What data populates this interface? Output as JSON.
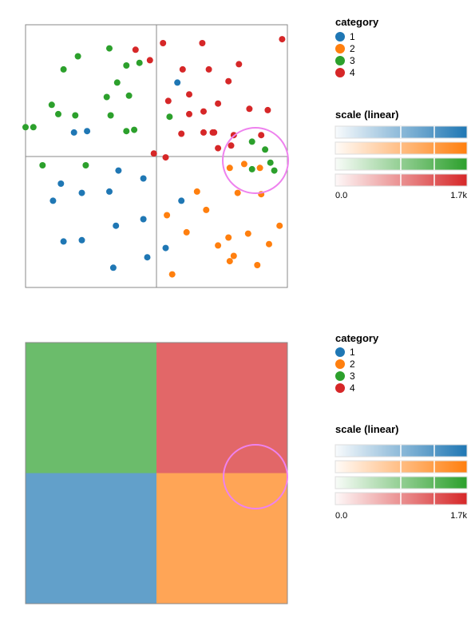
{
  "colors": {
    "1": "#1f77b4",
    "2": "#ff7f0e",
    "3": "#2ca02c",
    "4": "#d62728",
    "lens": "#ee82ee",
    "frame": "#888888"
  },
  "legend": {
    "category_title": "category",
    "categories": [
      "1",
      "2",
      "3",
      "4"
    ],
    "scale_title": "scale (linear)",
    "scale_min_label": "0.0",
    "scale_max_label": "1.7k"
  },
  "chart_data": [
    {
      "type": "scatter",
      "title": "",
      "xlabel": "",
      "ylabel": "",
      "xlim": [
        -1,
        1
      ],
      "ylim": [
        -1,
        1
      ],
      "grid": false,
      "legend_position": "right",
      "series": [
        {
          "name": "1",
          "points": [
            [
              -0.53,
              0.19
            ],
            [
              -0.29,
              -0.11
            ],
            [
              -0.73,
              -0.21
            ],
            [
              -0.79,
              -0.34
            ],
            [
              -0.57,
              -0.28
            ],
            [
              -0.36,
              -0.27
            ],
            [
              -0.1,
              -0.17
            ],
            [
              -0.31,
              -0.53
            ],
            [
              -0.1,
              -0.48
            ],
            [
              -0.71,
              -0.65
            ],
            [
              -0.57,
              -0.64
            ],
            [
              -0.07,
              -0.77
            ],
            [
              -0.33,
              -0.85
            ],
            [
              0.07,
              -0.7
            ],
            [
              0.19,
              -0.34
            ],
            [
              0.16,
              0.56
            ],
            [
              -0.63,
              0.18
            ]
          ]
        },
        {
          "name": "2",
          "points": [
            [
              0.56,
              -0.09
            ],
            [
              0.67,
              -0.06
            ],
            [
              0.79,
              -0.09
            ],
            [
              0.62,
              -0.28
            ],
            [
              0.8,
              -0.29
            ],
            [
              0.31,
              -0.27
            ],
            [
              0.38,
              -0.41
            ],
            [
              0.08,
              -0.45
            ],
            [
              0.23,
              -0.58
            ],
            [
              0.55,
              -0.62
            ],
            [
              0.7,
              -0.59
            ],
            [
              0.86,
              -0.67
            ],
            [
              0.47,
              -0.68
            ],
            [
              0.94,
              -0.53
            ],
            [
              0.59,
              -0.76
            ],
            [
              0.56,
              -0.8
            ],
            [
              0.77,
              -0.83
            ],
            [
              0.12,
              -0.9
            ]
          ]
        },
        {
          "name": "3",
          "points": [
            [
              -0.36,
              0.82
            ],
            [
              -0.6,
              0.76
            ],
            [
              -0.71,
              0.66
            ],
            [
              -0.23,
              0.69
            ],
            [
              -0.3,
              0.56
            ],
            [
              -0.13,
              0.71
            ],
            [
              -0.21,
              0.46
            ],
            [
              -0.38,
              0.45
            ],
            [
              -0.8,
              0.39
            ],
            [
              -0.62,
              0.31
            ],
            [
              -0.75,
              0.32
            ],
            [
              -0.94,
              0.22
            ],
            [
              -1.0,
              0.22
            ],
            [
              -0.35,
              0.31
            ],
            [
              -0.17,
              0.2
            ],
            [
              -0.23,
              0.19
            ],
            [
              0.1,
              0.3
            ],
            [
              -0.87,
              -0.07
            ],
            [
              -0.54,
              -0.07
            ],
            [
              0.73,
              0.11
            ],
            [
              0.83,
              0.05
            ],
            [
              0.87,
              -0.05
            ],
            [
              0.9,
              -0.11
            ],
            [
              0.73,
              -0.1
            ]
          ]
        },
        {
          "name": "4",
          "points": [
            [
              0.05,
              0.86
            ],
            [
              0.35,
              0.86
            ],
            [
              0.96,
              0.89
            ],
            [
              -0.16,
              0.81
            ],
            [
              -0.05,
              0.73
            ],
            [
              0.2,
              0.66
            ],
            [
              0.4,
              0.66
            ],
            [
              0.63,
              0.7
            ],
            [
              0.55,
              0.57
            ],
            [
              0.25,
              0.47
            ],
            [
              0.09,
              0.42
            ],
            [
              0.25,
              0.32
            ],
            [
              0.36,
              0.34
            ],
            [
              0.47,
              0.4
            ],
            [
              0.71,
              0.36
            ],
            [
              0.85,
              0.35
            ],
            [
              0.19,
              0.17
            ],
            [
              0.36,
              0.18
            ],
            [
              0.44,
              0.18
            ],
            [
              0.59,
              0.16
            ],
            [
              0.8,
              0.16
            ],
            [
              0.43,
              0.18
            ],
            [
              0.47,
              0.06
            ],
            [
              -0.02,
              0.02
            ],
            [
              0.07,
              -0.01
            ],
            [
              0.57,
              0.08
            ]
          ]
        }
      ]
    },
    {
      "type": "heatmap",
      "title": "",
      "xlabel": "",
      "ylabel": "",
      "xlim": [
        -1,
        1
      ],
      "ylim": [
        -1,
        1
      ],
      "grid": false,
      "legend_position": "right",
      "cells": [
        {
          "quadrant": "top-left",
          "category": "3"
        },
        {
          "quadrant": "top-right",
          "category": "4"
        },
        {
          "quadrant": "bottom-left",
          "category": "1"
        },
        {
          "quadrant": "bottom-right",
          "category": "2"
        }
      ]
    }
  ]
}
